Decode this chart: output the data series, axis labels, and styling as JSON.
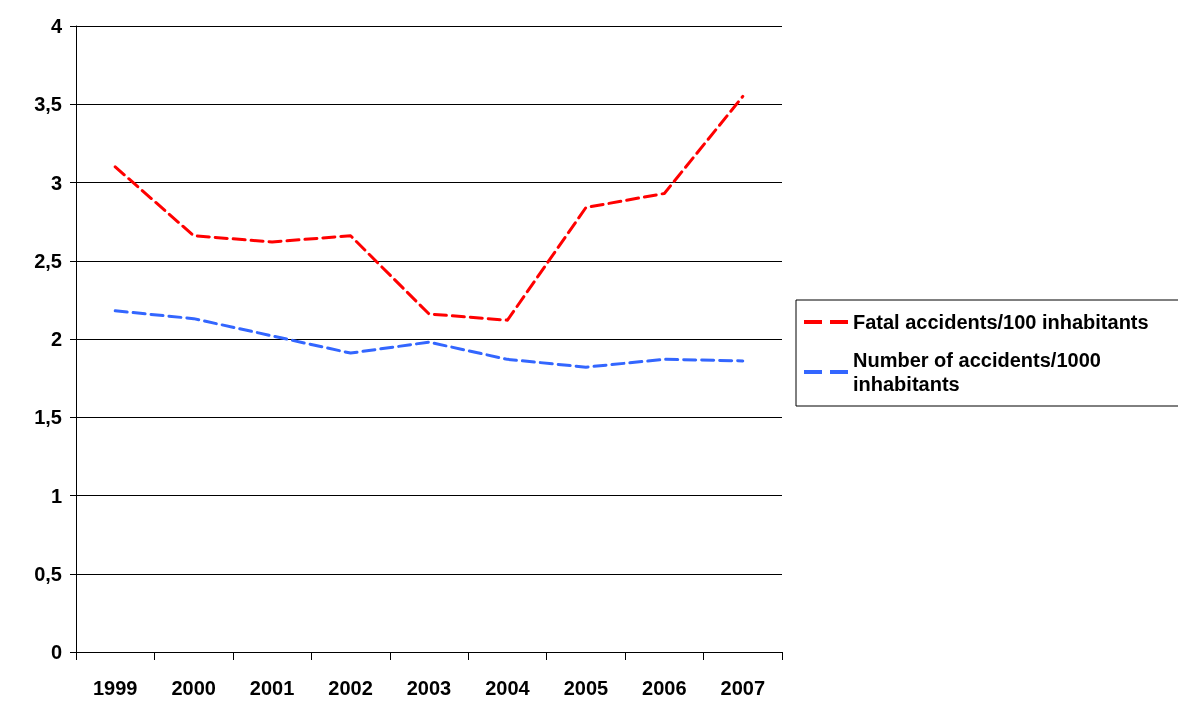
{
  "chart_data": {
    "type": "line",
    "categories": [
      "1999",
      "2000",
      "2001",
      "2002",
      "2003",
      "2004",
      "2005",
      "2006",
      "2007"
    ],
    "series": [
      {
        "name": "Fatal accidents/100 inhabitants",
        "color": "#ff0000",
        "values": [
          3.1,
          2.66,
          2.62,
          2.66,
          2.16,
          2.12,
          2.84,
          2.93,
          3.55
        ]
      },
      {
        "name": "Number of accidents/1000 inhabitants",
        "color": "#3366ff",
        "values": [
          2.18,
          2.13,
          2.02,
          1.91,
          1.98,
          1.87,
          1.82,
          1.87,
          1.86
        ]
      }
    ],
    "ylim": [
      0,
      4
    ],
    "yticks": [
      0,
      {
        "value": 0.5,
        "label": "0,5"
      },
      1,
      {
        "value": 1.5,
        "label": "1,5"
      },
      2,
      {
        "value": 2.5,
        "label": "2,5"
      },
      3,
      {
        "value": 3.5,
        "label": "3,5"
      },
      4
    ],
    "grid": "y",
    "legend": "right",
    "marker": "none",
    "line_style": "dashed"
  }
}
